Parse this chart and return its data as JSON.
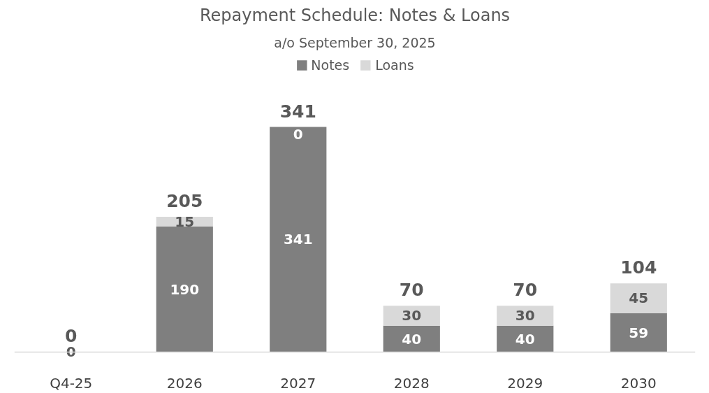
{
  "chart_data": {
    "type": "bar",
    "stacked": true,
    "title": "Repayment Schedule: Notes & Loans",
    "subtitle": "a/o September 30, 2025",
    "categories": [
      "Q4-25",
      "2026",
      "2027",
      "2028",
      "2029",
      "2030"
    ],
    "series": [
      {
        "name": "Notes",
        "color": "#7f7f7f",
        "values": [
          0,
          190,
          341,
          40,
          40,
          59
        ],
        "value_labels": [
          "0",
          "190",
          "341",
          "40",
          "40",
          "59"
        ]
      },
      {
        "name": "Loans",
        "color": "#d9d9d9",
        "values": [
          0,
          15,
          0,
          30,
          30,
          45
        ],
        "value_labels": [
          null,
          "15",
          "0",
          "30",
          "30",
          "45"
        ]
      }
    ],
    "totals": [
      "0",
      "205",
      "341",
      "70",
      "70",
      "104"
    ],
    "legend": "top"
  }
}
